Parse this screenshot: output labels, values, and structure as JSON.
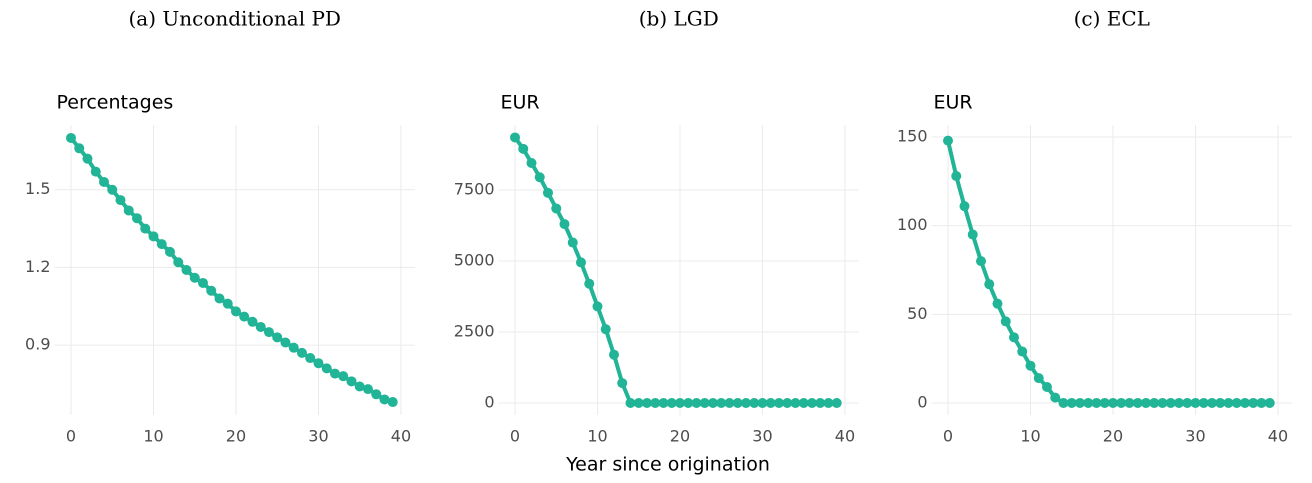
{
  "x_label": "Year since origination",
  "chart_data": [
    {
      "type": "line",
      "caption": "(a) Unconditional PD",
      "y_label": "Percentages",
      "color": "#21b497",
      "grid": true,
      "x": [
        0,
        1,
        2,
        3,
        4,
        5,
        6,
        7,
        8,
        9,
        10,
        11,
        12,
        13,
        14,
        15,
        16,
        17,
        18,
        19,
        20,
        21,
        22,
        23,
        24,
        25,
        26,
        27,
        28,
        29,
        30,
        31,
        32,
        33,
        34,
        35,
        36,
        37,
        38,
        39
      ],
      "values": [
        1.7,
        1.66,
        1.62,
        1.57,
        1.53,
        1.5,
        1.46,
        1.42,
        1.39,
        1.35,
        1.32,
        1.29,
        1.26,
        1.22,
        1.19,
        1.16,
        1.14,
        1.11,
        1.08,
        1.06,
        1.03,
        1.01,
        0.99,
        0.97,
        0.95,
        0.93,
        0.91,
        0.89,
        0.87,
        0.85,
        0.83,
        0.81,
        0.79,
        0.78,
        0.76,
        0.74,
        0.73,
        0.71,
        0.69,
        0.68
      ],
      "xlim": [
        -2,
        41.7
      ],
      "xticks": [
        0,
        10,
        20,
        30,
        40
      ],
      "ylim": [
        0.63,
        1.75
      ],
      "yticks": [
        0.9,
        1.2,
        1.5
      ]
    },
    {
      "type": "line",
      "caption": "(b) LGD",
      "y_label": "EUR",
      "color": "#21b497",
      "grid": true,
      "x": [
        0,
        1,
        2,
        3,
        4,
        5,
        6,
        7,
        8,
        9,
        10,
        11,
        12,
        13,
        14,
        15,
        16,
        17,
        18,
        19,
        20,
        21,
        22,
        23,
        24,
        25,
        26,
        27,
        28,
        29,
        30,
        31,
        32,
        33,
        34,
        35,
        36,
        37,
        38,
        39
      ],
      "values": [
        9350,
        8950,
        8450,
        7950,
        7400,
        6850,
        6300,
        5650,
        4950,
        4200,
        3400,
        2600,
        1700,
        700,
        0,
        0,
        0,
        0,
        0,
        0,
        0,
        0,
        0,
        0,
        0,
        0,
        0,
        0,
        0,
        0,
        0,
        0,
        0,
        0,
        0,
        0,
        0,
        0,
        0,
        0
      ],
      "xlim": [
        -2,
        41.7
      ],
      "xticks": [
        0,
        10,
        20,
        30,
        40
      ],
      "ylim": [
        -423,
        9789
      ],
      "yticks": [
        0,
        2500,
        5000,
        7500
      ]
    },
    {
      "type": "line",
      "caption": "(c) ECL",
      "y_label": "EUR",
      "color": "#21b497",
      "grid": true,
      "x": [
        0,
        1,
        2,
        3,
        4,
        5,
        6,
        7,
        8,
        9,
        10,
        11,
        12,
        13,
        14,
        15,
        16,
        17,
        18,
        19,
        20,
        21,
        22,
        23,
        24,
        25,
        26,
        27,
        28,
        29,
        30,
        31,
        32,
        33,
        34,
        35,
        36,
        37,
        38,
        39
      ],
      "values": [
        148,
        128,
        111,
        95,
        80,
        67,
        56,
        46,
        37,
        29,
        21,
        14,
        9,
        3,
        0,
        0,
        0,
        0,
        0,
        0,
        0,
        0,
        0,
        0,
        0,
        0,
        0,
        0,
        0,
        0,
        0,
        0,
        0,
        0,
        0,
        0,
        0,
        0,
        0,
        0
      ],
      "xlim": [
        -2,
        41.7
      ],
      "xticks": [
        0,
        10,
        20,
        30,
        40
      ],
      "ylim": [
        -6.8,
        156.8
      ],
      "yticks": [
        0,
        50,
        100,
        150
      ]
    }
  ]
}
